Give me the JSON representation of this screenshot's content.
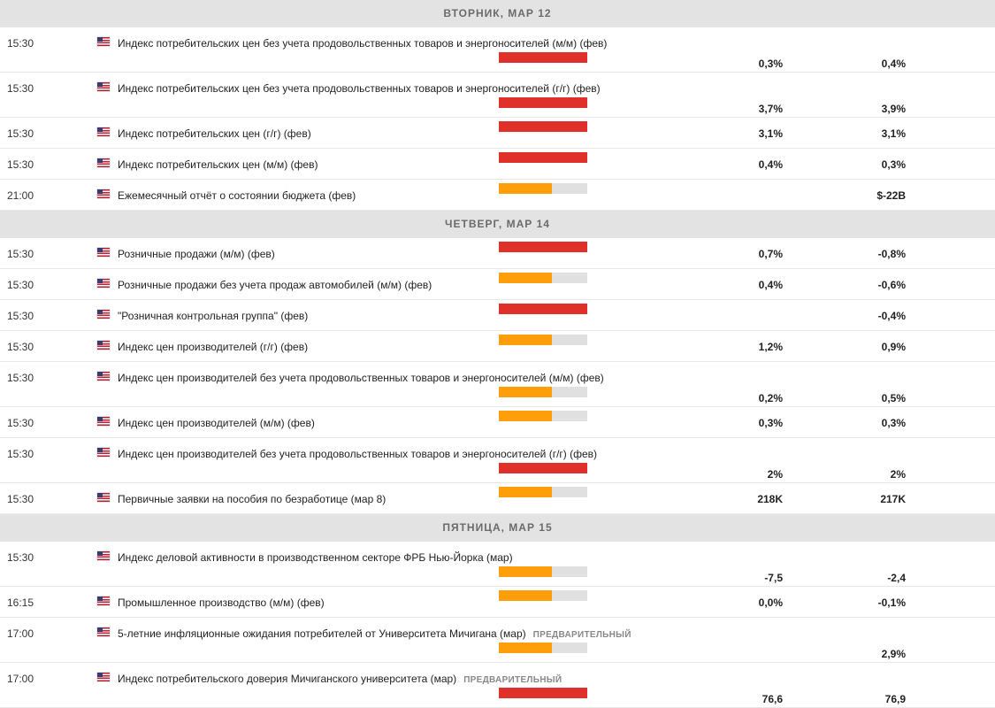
{
  "colors": {
    "high": "#e0302a",
    "medium": "#ff9e0b",
    "empty": "#e0e0e0",
    "header_bg": "#e3e3e3"
  },
  "icons": {
    "flag": "us-flag-icon"
  },
  "days": [
    {
      "header": "ВТОРНИК, МАР 12",
      "events": [
        {
          "time": "15:30",
          "title": "Индекс потребительских цен без учета продовольственных товаров и энергоносителей (м/м) (фев)",
          "badge": "",
          "importance": 1.0,
          "level": "high",
          "tall": true,
          "actual": "0,3%",
          "forecast": "0,4%"
        },
        {
          "time": "15:30",
          "title": "Индекс потребительских цен без учета продовольственных товаров и энергоносителей (г/г) (фев)",
          "badge": "",
          "importance": 1.0,
          "level": "high",
          "tall": true,
          "actual": "3,7%",
          "forecast": "3,9%"
        },
        {
          "time": "15:30",
          "title": "Индекс потребительских цен (г/г) (фев)",
          "badge": "",
          "importance": 1.0,
          "level": "high",
          "tall": false,
          "actual": "3,1%",
          "forecast": "3,1%"
        },
        {
          "time": "15:30",
          "title": "Индекс потребительских цен (м/м) (фев)",
          "badge": "",
          "importance": 1.0,
          "level": "high",
          "tall": false,
          "actual": "0,4%",
          "forecast": "0,3%"
        },
        {
          "time": "21:00",
          "title": "Ежемесячный отчёт о состоянии бюджета (фев)",
          "badge": "",
          "importance": 0.6,
          "level": "medium",
          "tall": false,
          "actual": "",
          "forecast": "$-22B"
        }
      ]
    },
    {
      "header": "ЧЕТВЕРГ, МАР 14",
      "events": [
        {
          "time": "15:30",
          "title": "Розничные продажи (м/м) (фев)",
          "badge": "",
          "importance": 1.0,
          "level": "high",
          "tall": false,
          "actual": "0,7%",
          "forecast": "-0,8%"
        },
        {
          "time": "15:30",
          "title": "Розничные продажи без учета продаж автомобилей (м/м) (фев)",
          "badge": "",
          "importance": 0.6,
          "level": "medium",
          "tall": false,
          "actual": "0,4%",
          "forecast": "-0,6%"
        },
        {
          "time": "15:30",
          "title": "\"Розничная контрольная группа\" (фев)",
          "badge": "",
          "importance": 1.0,
          "level": "high",
          "tall": false,
          "actual": "",
          "forecast": "-0,4%"
        },
        {
          "time": "15:30",
          "title": "Индекс цен производителей (г/г) (фев)",
          "badge": "",
          "importance": 0.6,
          "level": "medium",
          "tall": false,
          "actual": "1,2%",
          "forecast": "0,9%"
        },
        {
          "time": "15:30",
          "title": "Индекс цен производителей без учета продовольственных товаров и энергоносителей (м/м) (фев)",
          "badge": "",
          "importance": 0.6,
          "level": "medium",
          "tall": true,
          "actual": "0,2%",
          "forecast": "0,5%"
        },
        {
          "time": "15:30",
          "title": "Индекс цен производителей (м/м) (фев)",
          "badge": "",
          "importance": 0.6,
          "level": "medium",
          "tall": false,
          "actual": "0,3%",
          "forecast": "0,3%"
        },
        {
          "time": "15:30",
          "title": "Индекс цен производителей без учета продовольственных товаров и энергоносителей (г/г) (фев)",
          "badge": "",
          "importance": 1.0,
          "level": "high",
          "tall": true,
          "actual": "2%",
          "forecast": "2%"
        },
        {
          "time": "15:30",
          "title": "Первичные заявки на пособия по безработице (мар 8)",
          "badge": "",
          "importance": 0.6,
          "level": "medium",
          "tall": false,
          "actual": "218K",
          "forecast": "217K"
        }
      ]
    },
    {
      "header": "ПЯТНИЦА, МАР 15",
      "events": [
        {
          "time": "15:30",
          "title": "Индекс деловой активности в производственном секторе ФРБ Нью-Йорка (мар)",
          "badge": "",
          "importance": 0.6,
          "level": "medium",
          "tall": true,
          "actual": "-7,5",
          "forecast": "-2,4"
        },
        {
          "time": "16:15",
          "title": "Промышленное производство (м/м) (фев)",
          "badge": "",
          "importance": 0.6,
          "level": "medium",
          "tall": false,
          "actual": "0,0%",
          "forecast": "-0,1%"
        },
        {
          "time": "17:00",
          "title": "5-летние инфляционные ожидания потребителей от Университета Мичигана (мар)",
          "badge": "ПРЕДВАРИТЕЛЬНЫЙ",
          "importance": 0.6,
          "level": "medium",
          "tall": true,
          "actual": "",
          "forecast": "2,9%"
        },
        {
          "time": "17:00",
          "title": "Индекс потребительского доверия Мичиганского университета (мар)",
          "badge": "ПРЕДВАРИТЕЛЬНЫЙ",
          "importance": 1.0,
          "level": "high",
          "tall": true,
          "actual": "76,6",
          "forecast": "76,9"
        }
      ]
    }
  ]
}
